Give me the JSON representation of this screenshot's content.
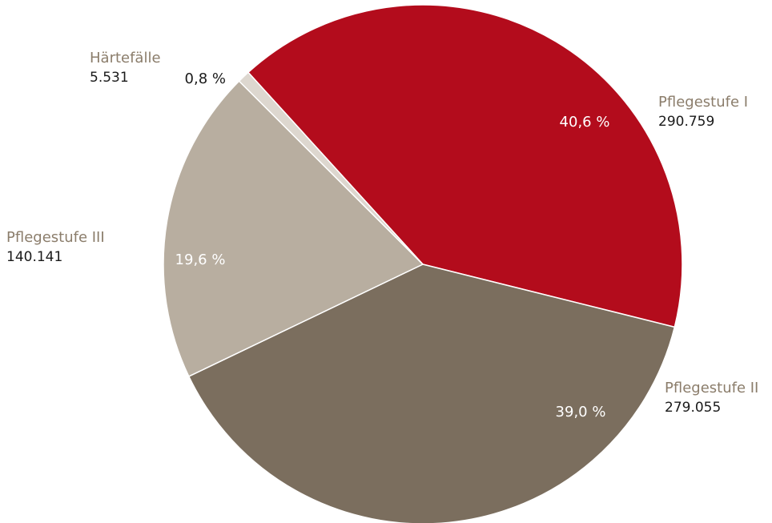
{
  "chart_data": {
    "type": "pie",
    "title": "",
    "categories": [
      "Pflegestufe I",
      "Pflegestufe II",
      "Pflegestufe III",
      "Härtefälle"
    ],
    "values": [
      290759,
      279055,
      140141,
      5531
    ],
    "value_labels": [
      "290.759",
      "279.055",
      "140.141",
      "5.531"
    ],
    "percentages": [
      40.6,
      39.0,
      19.6,
      0.8
    ],
    "percent_labels": [
      "40,6 %",
      "39,0 %",
      "19,6 %",
      "0,8 %"
    ],
    "colors": [
      "#b30c1c",
      "#7b6e5e",
      "#b8aea0",
      "#ddd7cf"
    ],
    "category_label_color": "#8b7d6b",
    "value_label_color": "#1a1a1a",
    "percent_label_color_inside": "#ffffff",
    "percent_label_color_outside": "#1a1a1a",
    "start_angle_deg": -42.3,
    "direction": "clockwise",
    "legend": "none"
  }
}
